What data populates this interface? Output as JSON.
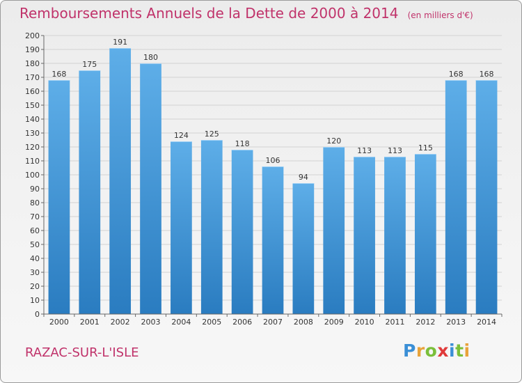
{
  "chart_data": {
    "type": "bar",
    "title": "Remboursements Annuels de la Dette de 2000 à 2014",
    "unit": "(en milliers d'€)",
    "categories": [
      "2000",
      "2001",
      "2002",
      "2003",
      "2004",
      "2005",
      "2006",
      "2007",
      "2008",
      "2009",
      "2010",
      "2011",
      "2012",
      "2013",
      "2014"
    ],
    "values": [
      168,
      175,
      191,
      180,
      124,
      125,
      118,
      106,
      94,
      120,
      113,
      113,
      115,
      168,
      168
    ],
    "data_labels": [
      "168",
      "175",
      "191",
      "180",
      "124",
      "125",
      "118",
      "106",
      "94",
      "120",
      "113",
      "113",
      "115",
      "168",
      "168"
    ],
    "y_ticks": [
      "0",
      "10",
      "20",
      "30",
      "40",
      "50",
      "60",
      "70",
      "80",
      "90",
      "100",
      "110",
      "120",
      "130",
      "140",
      "150",
      "160",
      "170",
      "180",
      "190",
      "200"
    ],
    "ylim": [
      0,
      200
    ],
    "grid": true,
    "colors": {
      "bar_top": "#5eaee8",
      "bar_bottom": "#2a7cc0",
      "title": "#c0326a"
    }
  },
  "footer": {
    "commune": "RAZAC-SUR-L'ISLE",
    "logo": {
      "letters": [
        "P",
        "r",
        "o",
        "x",
        "i",
        "t",
        "i"
      ],
      "colors": [
        "#3a8fd6",
        "#e8a33a",
        "#7bbf3a",
        "#e03a3a",
        "#3a8fd6",
        "#7bbf3a",
        "#e8a33a"
      ]
    }
  }
}
